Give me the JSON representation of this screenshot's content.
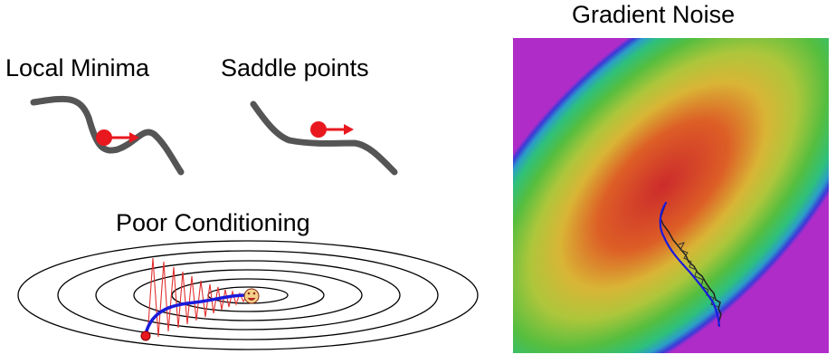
{
  "panels": {
    "local_minima": {
      "title": "Local Minima"
    },
    "saddle_points": {
      "title": "Saddle points"
    },
    "poor_conditioning": {
      "title": "Poor Conditioning"
    },
    "gradient_noise": {
      "title": "Gradient Noise"
    }
  },
  "colors": {
    "curve": "#555555",
    "ball": "#e8181e",
    "arrow": "#e8181e",
    "path_sgd": "#1a1adc",
    "path_noisy": "#222222",
    "zigzag": "#e23030",
    "contour": "#000000"
  }
}
